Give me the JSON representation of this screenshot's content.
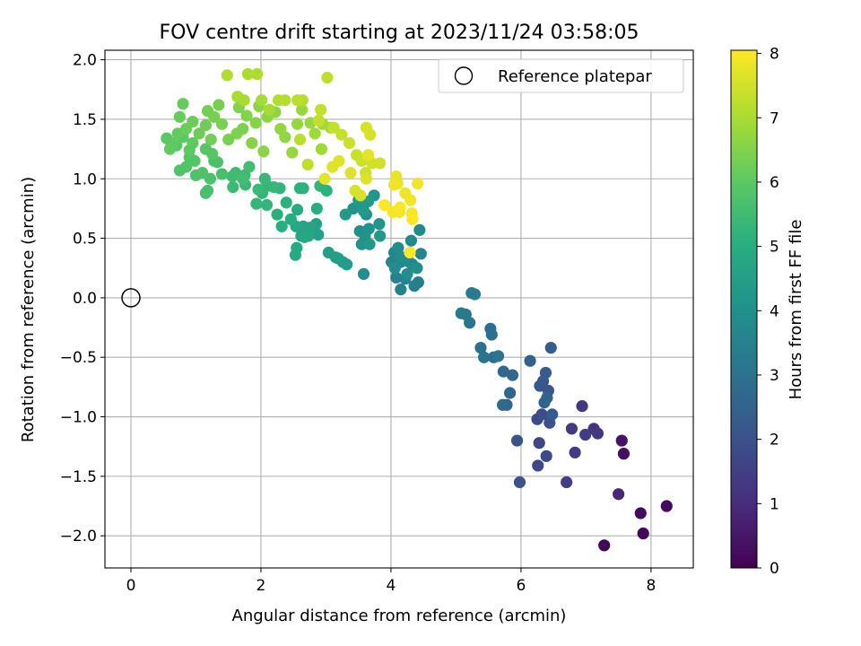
{
  "chart_data": {
    "type": "scatter",
    "title": "FOV centre drift starting at 2023/11/24 03:58:05",
    "xlabel": "Angular distance from reference (arcmin)",
    "ylabel": "Rotation from reference (arcmin)",
    "xlim": [
      -0.4,
      8.65
    ],
    "ylim": [
      -2.27,
      2.08
    ],
    "xticks": [
      0,
      2,
      4,
      6,
      8
    ],
    "yticks": [
      -2.0,
      -1.5,
      -1.0,
      -0.5,
      0.0,
      0.5,
      1.0,
      1.5,
      2.0
    ],
    "grid": true,
    "legend": {
      "placement": "top-right",
      "entries": [
        "Reference platepar"
      ]
    },
    "reference_point": {
      "x": 0,
      "y": 0,
      "label": "Reference platepar"
    },
    "colorbar": {
      "label": "Hours from first FF file",
      "min": 0,
      "max": 8.05,
      "ticks": [
        0,
        1,
        2,
        3,
        4,
        5,
        6,
        7,
        8
      ],
      "colormap": "viridis"
    },
    "series": [
      {
        "columns": [
          "x",
          "y",
          "hours"
        ],
        "points": [
          [
            7.28,
            -2.08,
            0.1
          ],
          [
            7.88,
            -1.98,
            0.15
          ],
          [
            7.84,
            -1.81,
            0.2
          ],
          [
            8.24,
            -1.75,
            0.25
          ],
          [
            7.58,
            -1.31,
            0.3
          ],
          [
            7.55,
            -1.2,
            0.4
          ],
          [
            7.5,
            -1.65,
            0.9
          ],
          [
            7.12,
            -1.1,
            1.2
          ],
          [
            7.18,
            -1.14,
            1.25
          ],
          [
            6.94,
            -0.91,
            1.3
          ],
          [
            6.78,
            -1.1,
            1.35
          ],
          [
            6.83,
            -1.3,
            1.4
          ],
          [
            6.99,
            -1.15,
            1.45
          ],
          [
            6.7,
            -1.55,
            1.5
          ],
          [
            6.26,
            -1.41,
            1.7
          ],
          [
            6.28,
            -1.22,
            1.75
          ],
          [
            6.39,
            -1.33,
            1.8
          ],
          [
            6.25,
            -1.02,
            1.85
          ],
          [
            6.32,
            -0.98,
            1.9
          ],
          [
            6.44,
            -1.05,
            1.95
          ],
          [
            5.98,
            -1.55,
            2.0
          ],
          [
            5.94,
            -1.2,
            2.05
          ],
          [
            6.42,
            -0.78,
            2.1
          ],
          [
            6.29,
            -0.74,
            2.15
          ],
          [
            6.34,
            -0.7,
            2.2
          ],
          [
            6.48,
            -0.98,
            2.25
          ],
          [
            6.38,
            -0.63,
            2.3
          ],
          [
            6.46,
            -0.42,
            2.4
          ],
          [
            6.14,
            -0.53,
            2.45
          ],
          [
            6.4,
            -0.84,
            2.5
          ],
          [
            6.36,
            -0.88,
            2.55
          ],
          [
            5.78,
            -0.9,
            2.6
          ],
          [
            5.83,
            -0.8,
            2.65
          ],
          [
            5.87,
            -0.65,
            2.7
          ],
          [
            5.73,
            -0.62,
            2.75
          ],
          [
            5.72,
            -0.9,
            2.8
          ],
          [
            5.58,
            -0.5,
            2.85
          ],
          [
            5.53,
            -0.26,
            2.9
          ],
          [
            5.55,
            -0.31,
            2.95
          ],
          [
            5.38,
            -0.42,
            3.0
          ],
          [
            5.43,
            -0.5,
            3.05
          ],
          [
            5.65,
            -0.49,
            3.1
          ],
          [
            5.21,
            -0.21,
            3.15
          ],
          [
            5.15,
            -0.14,
            3.2
          ],
          [
            5.08,
            -0.13,
            3.25
          ],
          [
            5.24,
            0.04,
            3.3
          ],
          [
            5.29,
            0.03,
            3.35
          ],
          [
            4.36,
            0.1,
            3.4
          ],
          [
            4.42,
            0.13,
            3.45
          ],
          [
            4.15,
            0.07,
            3.5
          ],
          [
            4.08,
            0.17,
            3.5
          ],
          [
            4.22,
            0.16,
            3.55
          ],
          [
            4.46,
            0.37,
            3.6
          ],
          [
            4.01,
            0.3,
            3.6
          ],
          [
            4.33,
            0.28,
            3.65
          ],
          [
            4.15,
            0.3,
            3.7
          ],
          [
            4.05,
            0.38,
            3.7
          ],
          [
            4.28,
            0.3,
            3.75
          ],
          [
            4.31,
            0.48,
            3.8
          ],
          [
            4.44,
            0.57,
            3.8
          ],
          [
            4.11,
            0.42,
            3.85
          ],
          [
            4.18,
            0.34,
            3.85
          ],
          [
            4.06,
            0.25,
            3.9
          ],
          [
            4.25,
            0.2,
            3.9
          ],
          [
            4.4,
            0.25,
            3.95
          ],
          [
            3.58,
            0.2,
            4.0
          ],
          [
            3.52,
            0.56,
            4.0
          ],
          [
            3.62,
            0.7,
            4.05
          ],
          [
            3.66,
            0.58,
            4.05
          ],
          [
            3.55,
            0.45,
            4.1
          ],
          [
            3.6,
            0.52,
            4.1
          ],
          [
            3.42,
            0.75,
            4.15
          ],
          [
            3.57,
            0.75,
            4.15
          ],
          [
            3.74,
            0.86,
            4.2
          ],
          [
            3.82,
            0.62,
            4.2
          ],
          [
            3.67,
            0.45,
            4.25
          ],
          [
            3.83,
            0.52,
            4.25
          ],
          [
            3.5,
            0.82,
            4.3
          ],
          [
            3.58,
            0.73,
            4.3
          ],
          [
            3.65,
            0.81,
            4.35
          ],
          [
            3.3,
            0.7,
            4.35
          ],
          [
            3.26,
            0.3,
            4.4
          ],
          [
            3.32,
            0.28,
            4.4
          ],
          [
            3.19,
            0.33,
            4.45
          ],
          [
            3.15,
            0.34,
            4.5
          ],
          [
            3.04,
            0.38,
            4.5
          ],
          [
            2.88,
            0.53,
            4.55
          ],
          [
            2.85,
            0.62,
            4.6
          ],
          [
            2.62,
            0.52,
            4.65
          ],
          [
            2.65,
            0.6,
            4.7
          ],
          [
            2.76,
            0.59,
            4.7
          ],
          [
            2.67,
            0.51,
            4.75
          ],
          [
            2.73,
            0.52,
            4.75
          ],
          [
            2.54,
            0.6,
            4.8
          ],
          [
            2.55,
            0.42,
            4.85
          ],
          [
            2.53,
            0.36,
            4.9
          ],
          [
            2.56,
            0.74,
            4.95
          ],
          [
            2.46,
            0.66,
            5.0
          ],
          [
            2.86,
            0.75,
            5.0
          ],
          [
            2.32,
            0.6,
            5.05
          ],
          [
            2.25,
            0.7,
            5.05
          ],
          [
            2.39,
            0.8,
            5.1
          ],
          [
            2.6,
            0.92,
            5.1
          ],
          [
            3.01,
            0.9,
            5.15
          ],
          [
            2.65,
            0.92,
            5.15
          ],
          [
            2.29,
            0.92,
            5.2
          ],
          [
            2.91,
            0.94,
            5.2
          ],
          [
            2.09,
            0.78,
            5.25
          ],
          [
            2.02,
            0.88,
            5.25
          ],
          [
            1.93,
            0.79,
            5.3
          ],
          [
            2.1,
            0.94,
            5.3
          ],
          [
            2.2,
            0.93,
            5.35
          ],
          [
            2.06,
            1.0,
            5.35
          ],
          [
            1.96,
            0.91,
            5.4
          ],
          [
            1.76,
            0.95,
            5.4
          ],
          [
            1.75,
            1.03,
            5.45
          ],
          [
            1.57,
            0.93,
            5.45
          ],
          [
            1.56,
            1.02,
            5.5
          ],
          [
            1.61,
            1.05,
            5.5
          ],
          [
            1.82,
            1.1,
            5.55
          ],
          [
            1.72,
            1.0,
            5.55
          ],
          [
            1.28,
            1.15,
            5.6
          ],
          [
            1.15,
            0.88,
            5.6
          ],
          [
            1.18,
            0.9,
            5.65
          ],
          [
            1.4,
            1.04,
            5.65
          ],
          [
            1.33,
            1.14,
            5.7
          ],
          [
            1.22,
            1.0,
            5.7
          ],
          [
            1.1,
            1.05,
            5.75
          ],
          [
            1.0,
            1.03,
            5.75
          ],
          [
            0.85,
            1.1,
            5.8
          ],
          [
            0.75,
            1.07,
            5.8
          ],
          [
            0.9,
            1.18,
            5.85
          ],
          [
            0.98,
            1.15,
            5.85
          ],
          [
            1.25,
            1.21,
            5.9
          ],
          [
            1.15,
            1.25,
            5.9
          ],
          [
            0.7,
            1.28,
            5.95
          ],
          [
            0.55,
            1.34,
            5.95
          ],
          [
            0.62,
            1.3,
            6.0
          ],
          [
            0.8,
            1.35,
            6.0
          ],
          [
            0.9,
            1.24,
            6.05
          ],
          [
            0.95,
            1.3,
            6.05
          ],
          [
            0.72,
            1.38,
            6.1
          ],
          [
            0.6,
            1.25,
            6.1
          ],
          [
            0.75,
            1.52,
            6.15
          ],
          [
            0.8,
            1.63,
            6.15
          ],
          [
            0.85,
            1.42,
            6.2
          ],
          [
            0.95,
            1.48,
            6.2
          ],
          [
            1.05,
            1.38,
            6.25
          ],
          [
            1.15,
            1.45,
            6.25
          ],
          [
            1.23,
            1.33,
            6.3
          ],
          [
            1.18,
            1.57,
            6.3
          ],
          [
            1.28,
            1.52,
            6.35
          ],
          [
            1.35,
            1.62,
            6.35
          ],
          [
            1.4,
            1.46,
            6.4
          ],
          [
            1.5,
            1.33,
            6.4
          ],
          [
            1.63,
            1.38,
            6.45
          ],
          [
            1.72,
            1.42,
            6.45
          ],
          [
            1.66,
            1.6,
            6.5
          ],
          [
            1.78,
            1.53,
            6.5
          ],
          [
            1.86,
            1.3,
            6.55
          ],
          [
            1.92,
            1.47,
            6.55
          ],
          [
            1.97,
            1.61,
            6.6
          ],
          [
            2.04,
            1.23,
            6.6
          ],
          [
            2.1,
            1.52,
            6.65
          ],
          [
            2.22,
            1.56,
            6.65
          ],
          [
            2.3,
            1.42,
            6.7
          ],
          [
            2.37,
            1.35,
            6.7
          ],
          [
            2.48,
            1.22,
            6.75
          ],
          [
            2.56,
            1.46,
            6.75
          ],
          [
            2.63,
            1.58,
            6.8
          ],
          [
            2.76,
            1.47,
            6.8
          ],
          [
            2.83,
            1.38,
            6.85
          ],
          [
            2.93,
            1.25,
            6.85
          ],
          [
            2.95,
            1.46,
            6.9
          ],
          [
            3.07,
            1.43,
            6.9
          ],
          [
            2.13,
            1.58,
            6.95
          ],
          [
            2.01,
            1.66,
            6.95
          ],
          [
            1.74,
            1.66,
            7.0
          ],
          [
            1.64,
            1.69,
            7.0
          ],
          [
            1.94,
            1.88,
            7.05
          ],
          [
            1.8,
            1.88,
            7.05
          ],
          [
            1.48,
            1.87,
            7.1
          ],
          [
            2.27,
            1.66,
            7.1
          ],
          [
            2.37,
            1.66,
            7.15
          ],
          [
            2.64,
            1.66,
            7.15
          ],
          [
            2.56,
            1.66,
            7.2
          ],
          [
            2.6,
            1.33,
            7.2
          ],
          [
            2.72,
            1.12,
            7.25
          ],
          [
            3.02,
            1.85,
            7.25
          ],
          [
            2.92,
            1.58,
            7.3
          ],
          [
            2.89,
            1.49,
            7.3
          ],
          [
            3.12,
            1.43,
            7.35
          ],
          [
            3.24,
            1.37,
            7.35
          ],
          [
            3.36,
            1.3,
            7.4
          ],
          [
            3.47,
            1.2,
            7.4
          ],
          [
            3.55,
            1.15,
            7.45
          ],
          [
            3.61,
            1.05,
            7.45
          ],
          [
            3.71,
            1.13,
            7.5
          ],
          [
            3.83,
            1.13,
            7.5
          ],
          [
            3.62,
            1.43,
            7.55
          ],
          [
            3.68,
            1.37,
            7.55
          ],
          [
            3.45,
            0.9,
            7.6
          ],
          [
            3.53,
            0.86,
            7.6
          ],
          [
            3.62,
            1.0,
            7.65
          ],
          [
            3.38,
            1.05,
            7.65
          ],
          [
            3.2,
            1.15,
            7.7
          ],
          [
            3.1,
            1.1,
            7.7
          ],
          [
            2.98,
            1.0,
            7.75
          ],
          [
            3.65,
            1.2,
            7.75
          ],
          [
            4.08,
            1.02,
            7.8
          ],
          [
            4.1,
            0.96,
            7.8
          ],
          [
            4.05,
            0.95,
            7.85
          ],
          [
            4.22,
            0.88,
            7.85
          ],
          [
            4.41,
            0.96,
            7.9
          ],
          [
            4.3,
            0.82,
            7.9
          ],
          [
            4.13,
            0.72,
            7.95
          ],
          [
            4.03,
            0.72,
            7.95
          ],
          [
            4.14,
            0.76,
            8.0
          ],
          [
            4.32,
            0.71,
            8.0
          ],
          [
            4.33,
            0.66,
            8.02
          ],
          [
            3.9,
            0.78,
            8.02
          ],
          [
            4.29,
            0.38,
            8.05
          ]
        ]
      }
    ]
  }
}
